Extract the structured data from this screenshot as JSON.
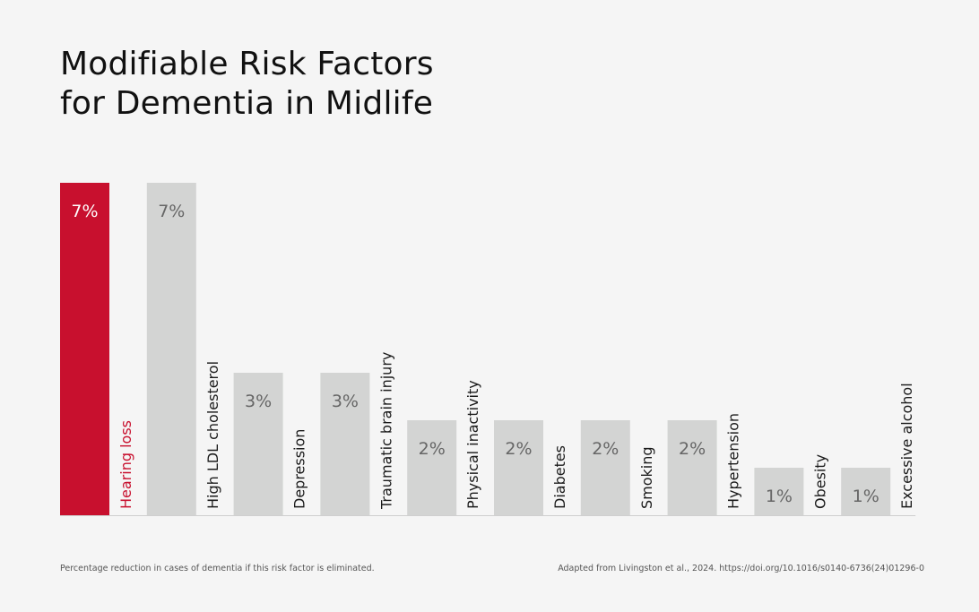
{
  "title_lines": [
    "Modifiable Risk Factors",
    "for Dementia in Midlife"
  ],
  "footnote_left": "Percentage reduction in cases of dementia if this risk factor is eliminated.",
  "footnote_right": "Adapted from Livingston et al., 2024. https://doi.org/10.1016/s0140-6736(24)01296-0",
  "colors": {
    "highlight": "#c8102e",
    "bar": "#d3d4d3",
    "bar_label_on_highlight": "#ffffff",
    "bar_label": "#666666",
    "category_label": "#1a1a1a",
    "baseline": "#cfcfcf"
  },
  "chart_data": {
    "type": "bar",
    "categories": [
      "Hearing loss",
      "High LDL cholesterol",
      "Depression",
      "Traumatic brain injury",
      "Physical inactivity",
      "Diabetes",
      "Smoking",
      "Hypertension",
      "Obesity",
      "Excessive alcohol"
    ],
    "values": [
      7,
      7,
      3,
      3,
      2,
      2,
      2,
      2,
      1,
      1
    ],
    "labels": [
      "7%",
      "7%",
      "3%",
      "3%",
      "2%",
      "2%",
      "2%",
      "2%",
      "1%",
      "1%"
    ],
    "highlight_index": 0,
    "ylim": [
      0,
      7
    ],
    "title": "Modifiable Risk Factors for Dementia in Midlife",
    "xlabel": "",
    "ylabel": ""
  }
}
